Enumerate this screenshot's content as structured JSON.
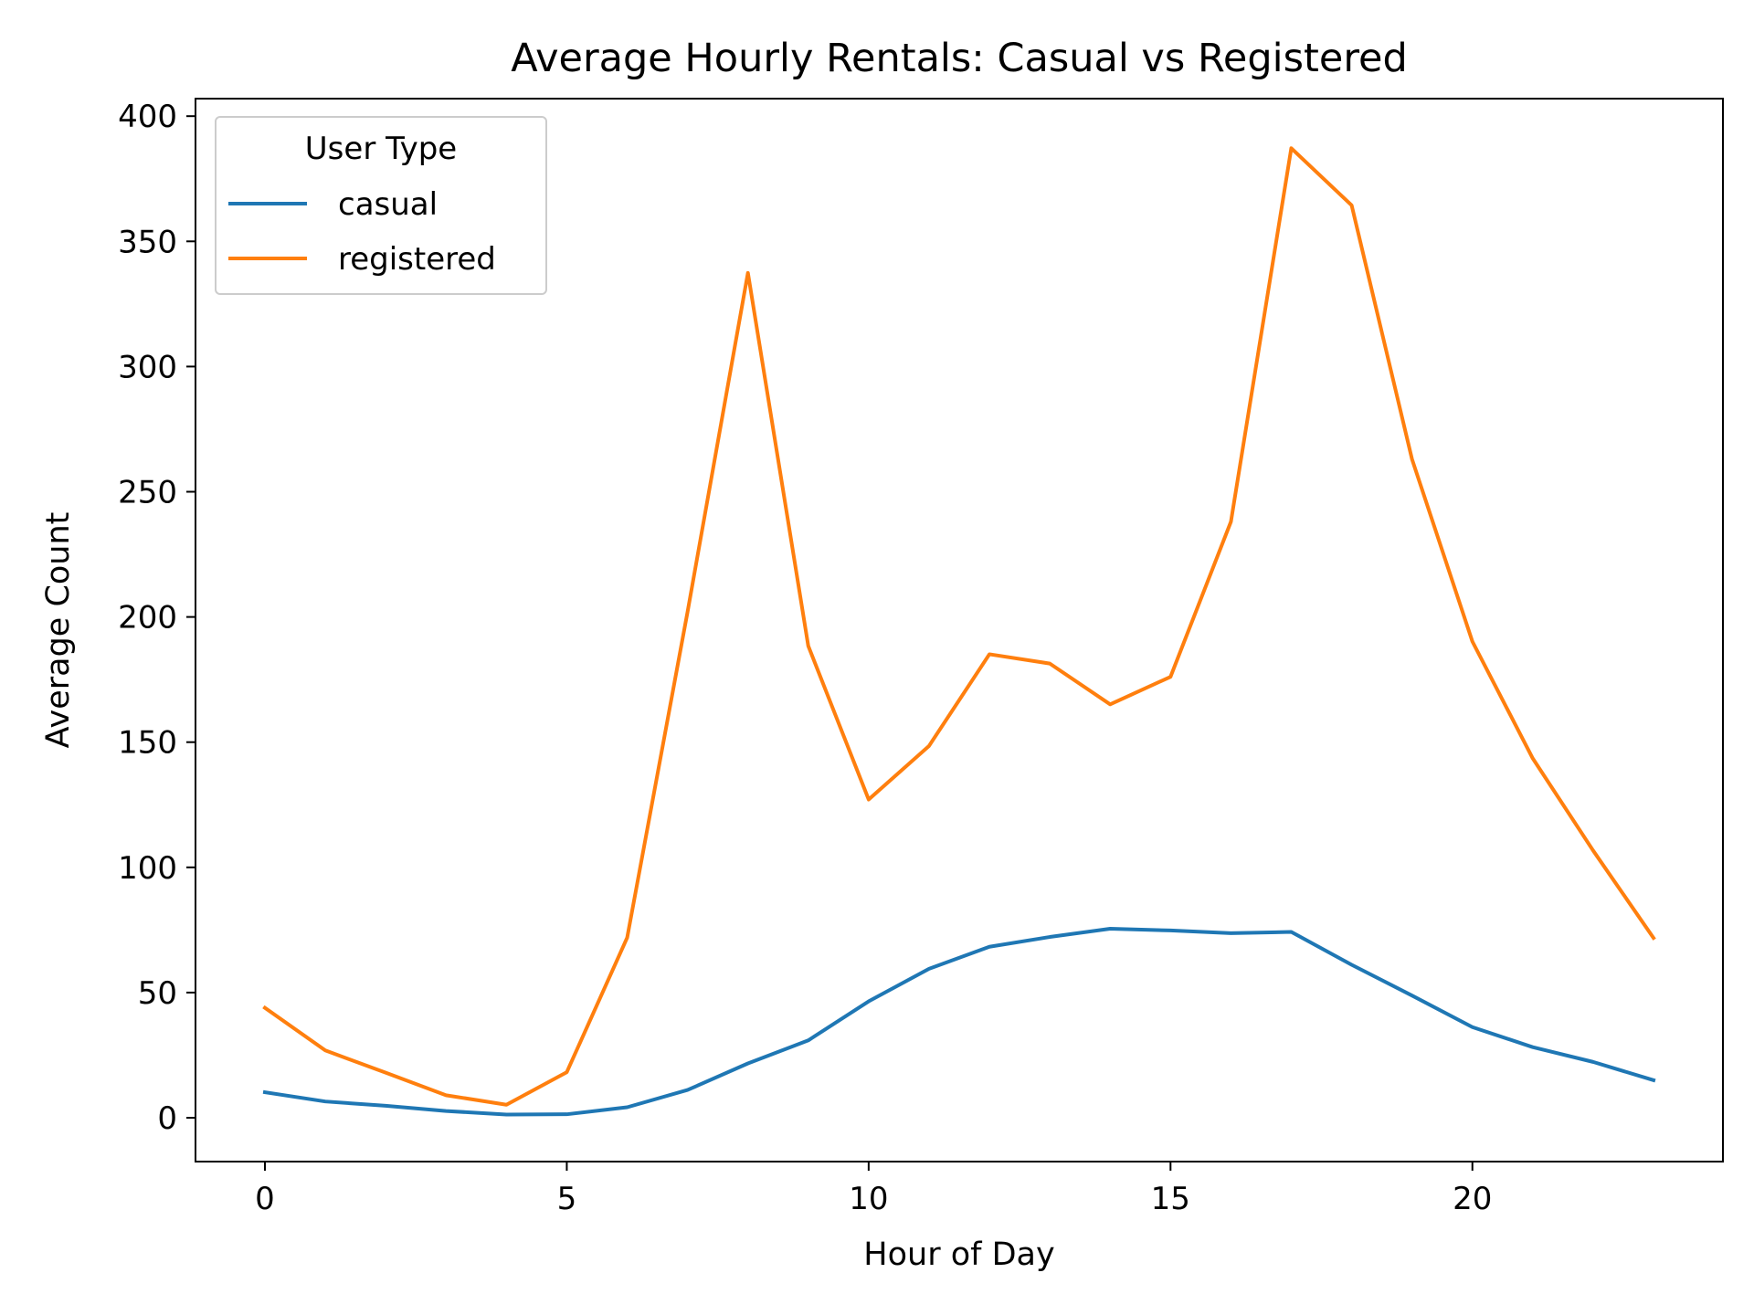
{
  "chart_data": {
    "type": "line",
    "title": "Average Hourly Rentals: Casual vs Registered",
    "xlabel": "Hour of Day",
    "ylabel": "Average Count",
    "xlim": [
      -1.15,
      24.15
    ],
    "ylim": [
      -17.5,
      407
    ],
    "xticks": [
      0,
      5,
      10,
      15,
      20
    ],
    "yticks": [
      0,
      50,
      100,
      150,
      200,
      250,
      300,
      350,
      400
    ],
    "grid": false,
    "legend": {
      "title": "User Type",
      "placement": "top-left"
    },
    "x": [
      0,
      1,
      2,
      3,
      4,
      5,
      6,
      7,
      8,
      9,
      10,
      11,
      12,
      13,
      14,
      15,
      16,
      17,
      18,
      19,
      20,
      21,
      22,
      23
    ],
    "series": [
      {
        "name": "casual",
        "color": "#1f77b4",
        "values": [
          10.2,
          6.5,
          4.8,
          2.7,
          1.3,
          1.4,
          4.2,
          11.1,
          21.7,
          30.9,
          46.5,
          59.5,
          68.3,
          72.2,
          75.5,
          74.8,
          73.7,
          74.2,
          61.1,
          48.8,
          36.2,
          28.2,
          22.3,
          15.0
        ]
      },
      {
        "name": "registered",
        "color": "#ff7f0e",
        "values": [
          43.9,
          26.9,
          18.0,
          9.0,
          5.2,
          18.2,
          71.9,
          202.0,
          337.4,
          188.4,
          127.1,
          148.5,
          185.1,
          181.4,
          165.1,
          176.1,
          238.0,
          387.2,
          364.4,
          263.0,
          190.2,
          143.5,
          106.7,
          71.8
        ]
      }
    ]
  }
}
